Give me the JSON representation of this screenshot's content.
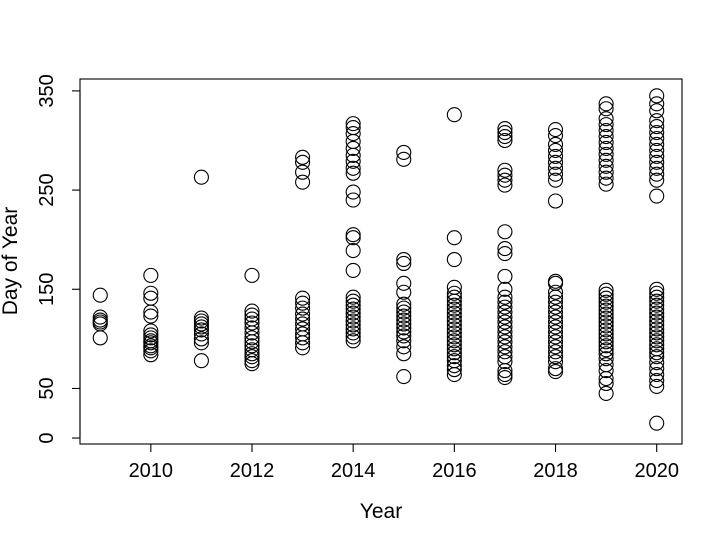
{
  "chart_data": {
    "type": "scatter",
    "title": "",
    "xlabel": "Year",
    "ylabel": "Day of Year",
    "xlim": [
      2008.6,
      2020.5
    ],
    "ylim": [
      -6,
      362
    ],
    "x_ticks": [
      2010,
      2012,
      2014,
      2016,
      2018,
      2020
    ],
    "y_ticks": [
      0,
      50,
      150,
      250,
      350
    ],
    "grid": false,
    "legend": "none",
    "marker": "open-circle",
    "colors": {
      "point_stroke": "#000000",
      "axis": "#000000",
      "background": "#ffffff"
    },
    "series": [
      {
        "points": [
          [
            2009,
            144
          ],
          [
            2009,
            122
          ],
          [
            2009,
            119
          ],
          [
            2009,
            117
          ],
          [
            2009,
            115
          ],
          [
            2009,
            101
          ],
          [
            2010,
            164
          ],
          [
            2010,
            146
          ],
          [
            2010,
            141
          ],
          [
            2010,
            127
          ],
          [
            2010,
            123
          ],
          [
            2010,
            108
          ],
          [
            2010,
            104
          ],
          [
            2010,
            101
          ],
          [
            2010,
            98
          ],
          [
            2010,
            96
          ],
          [
            2010,
            93
          ],
          [
            2010,
            91
          ],
          [
            2010,
            88
          ],
          [
            2010,
            84
          ],
          [
            2011,
            263
          ],
          [
            2011,
            121
          ],
          [
            2011,
            118
          ],
          [
            2011,
            115
          ],
          [
            2011,
            112
          ],
          [
            2011,
            109
          ],
          [
            2011,
            105
          ],
          [
            2011,
            100
          ],
          [
            2011,
            96
          ],
          [
            2011,
            78
          ],
          [
            2012,
            164
          ],
          [
            2012,
            128
          ],
          [
            2012,
            124
          ],
          [
            2012,
            120
          ],
          [
            2012,
            116
          ],
          [
            2012,
            111
          ],
          [
            2012,
            106
          ],
          [
            2012,
            101
          ],
          [
            2012,
            97
          ],
          [
            2012,
            93
          ],
          [
            2012,
            89
          ],
          [
            2012,
            85
          ],
          [
            2012,
            82
          ],
          [
            2012,
            78
          ],
          [
            2012,
            75
          ],
          [
            2013,
            283
          ],
          [
            2013,
            278
          ],
          [
            2013,
            268
          ],
          [
            2013,
            258
          ],
          [
            2013,
            141
          ],
          [
            2013,
            136
          ],
          [
            2013,
            131
          ],
          [
            2013,
            125
          ],
          [
            2013,
            120
          ],
          [
            2013,
            115
          ],
          [
            2013,
            110
          ],
          [
            2013,
            105
          ],
          [
            2013,
            101
          ],
          [
            2013,
            96
          ],
          [
            2013,
            91
          ],
          [
            2014,
            317
          ],
          [
            2014,
            313
          ],
          [
            2014,
            307
          ],
          [
            2014,
            299
          ],
          [
            2014,
            292
          ],
          [
            2014,
            285
          ],
          [
            2014,
            279
          ],
          [
            2014,
            272
          ],
          [
            2014,
            267
          ],
          [
            2014,
            248
          ],
          [
            2014,
            240
          ],
          [
            2014,
            205
          ],
          [
            2014,
            202
          ],
          [
            2014,
            189
          ],
          [
            2014,
            169
          ],
          [
            2014,
            142
          ],
          [
            2014,
            138
          ],
          [
            2014,
            134
          ],
          [
            2014,
            130
          ],
          [
            2014,
            126
          ],
          [
            2014,
            122
          ],
          [
            2014,
            118
          ],
          [
            2014,
            114
          ],
          [
            2014,
            110
          ],
          [
            2014,
            106
          ],
          [
            2014,
            102
          ],
          [
            2014,
            98
          ],
          [
            2015,
            288
          ],
          [
            2015,
            281
          ],
          [
            2015,
            180
          ],
          [
            2015,
            176
          ],
          [
            2015,
            156
          ],
          [
            2015,
            147
          ],
          [
            2015,
            135
          ],
          [
            2015,
            131
          ],
          [
            2015,
            127
          ],
          [
            2015,
            123
          ],
          [
            2015,
            119
          ],
          [
            2015,
            115
          ],
          [
            2015,
            111
          ],
          [
            2015,
            107
          ],
          [
            2015,
            103
          ],
          [
            2015,
            98
          ],
          [
            2015,
            92
          ],
          [
            2015,
            85
          ],
          [
            2015,
            62
          ],
          [
            2016,
            326
          ],
          [
            2016,
            202
          ],
          [
            2016,
            180
          ],
          [
            2016,
            152
          ],
          [
            2016,
            146
          ],
          [
            2016,
            142
          ],
          [
            2016,
            138
          ],
          [
            2016,
            134
          ],
          [
            2016,
            130
          ],
          [
            2016,
            126
          ],
          [
            2016,
            122
          ],
          [
            2016,
            118
          ],
          [
            2016,
            114
          ],
          [
            2016,
            110
          ],
          [
            2016,
            106
          ],
          [
            2016,
            102
          ],
          [
            2016,
            98
          ],
          [
            2016,
            94
          ],
          [
            2016,
            90
          ],
          [
            2016,
            86
          ],
          [
            2016,
            82
          ],
          [
            2016,
            78
          ],
          [
            2016,
            73
          ],
          [
            2016,
            69
          ],
          [
            2016,
            64
          ],
          [
            2017,
            312
          ],
          [
            2017,
            308
          ],
          [
            2017,
            304
          ],
          [
            2017,
            300
          ],
          [
            2017,
            270
          ],
          [
            2017,
            265
          ],
          [
            2017,
            260
          ],
          [
            2017,
            255
          ],
          [
            2017,
            208
          ],
          [
            2017,
            191
          ],
          [
            2017,
            186
          ],
          [
            2017,
            163
          ],
          [
            2017,
            150
          ],
          [
            2017,
            142
          ],
          [
            2017,
            137
          ],
          [
            2017,
            132
          ],
          [
            2017,
            127
          ],
          [
            2017,
            122
          ],
          [
            2017,
            117
          ],
          [
            2017,
            112
          ],
          [
            2017,
            107
          ],
          [
            2017,
            102
          ],
          [
            2017,
            97
          ],
          [
            2017,
            92
          ],
          [
            2017,
            87
          ],
          [
            2017,
            82
          ],
          [
            2017,
            77
          ],
          [
            2017,
            68
          ],
          [
            2017,
            64
          ],
          [
            2017,
            61
          ],
          [
            2018,
            311
          ],
          [
            2018,
            305
          ],
          [
            2018,
            296
          ],
          [
            2018,
            290
          ],
          [
            2018,
            284
          ],
          [
            2018,
            278
          ],
          [
            2018,
            272
          ],
          [
            2018,
            266
          ],
          [
            2018,
            260
          ],
          [
            2018,
            239
          ],
          [
            2018,
            158
          ],
          [
            2018,
            156
          ],
          [
            2018,
            147
          ],
          [
            2018,
            142
          ],
          [
            2018,
            137
          ],
          [
            2018,
            132
          ],
          [
            2018,
            127
          ],
          [
            2018,
            122
          ],
          [
            2018,
            117
          ],
          [
            2018,
            112
          ],
          [
            2018,
            107
          ],
          [
            2018,
            102
          ],
          [
            2018,
            97
          ],
          [
            2018,
            92
          ],
          [
            2018,
            87
          ],
          [
            2018,
            82
          ],
          [
            2018,
            77
          ],
          [
            2018,
            70
          ],
          [
            2018,
            67
          ],
          [
            2019,
            337
          ],
          [
            2019,
            332
          ],
          [
            2019,
            322
          ],
          [
            2019,
            316
          ],
          [
            2019,
            310
          ],
          [
            2019,
            304
          ],
          [
            2019,
            298
          ],
          [
            2019,
            292
          ],
          [
            2019,
            286
          ],
          [
            2019,
            280
          ],
          [
            2019,
            274
          ],
          [
            2019,
            268
          ],
          [
            2019,
            262
          ],
          [
            2019,
            256
          ],
          [
            2019,
            149
          ],
          [
            2019,
            145
          ],
          [
            2019,
            141
          ],
          [
            2019,
            137
          ],
          [
            2019,
            133
          ],
          [
            2019,
            129
          ],
          [
            2019,
            125
          ],
          [
            2019,
            121
          ],
          [
            2019,
            117
          ],
          [
            2019,
            113
          ],
          [
            2019,
            109
          ],
          [
            2019,
            105
          ],
          [
            2019,
            101
          ],
          [
            2019,
            97
          ],
          [
            2019,
            93
          ],
          [
            2019,
            89
          ],
          [
            2019,
            85
          ],
          [
            2019,
            80
          ],
          [
            2019,
            74
          ],
          [
            2019,
            68
          ],
          [
            2019,
            60
          ],
          [
            2019,
            55
          ],
          [
            2019,
            45
          ],
          [
            2020,
            345
          ],
          [
            2020,
            337
          ],
          [
            2020,
            330
          ],
          [
            2020,
            320
          ],
          [
            2020,
            314
          ],
          [
            2020,
            308
          ],
          [
            2020,
            302
          ],
          [
            2020,
            296
          ],
          [
            2020,
            290
          ],
          [
            2020,
            284
          ],
          [
            2020,
            278
          ],
          [
            2020,
            272
          ],
          [
            2020,
            266
          ],
          [
            2020,
            260
          ],
          [
            2020,
            244
          ],
          [
            2020,
            150
          ],
          [
            2020,
            146
          ],
          [
            2020,
            142
          ],
          [
            2020,
            138
          ],
          [
            2020,
            134
          ],
          [
            2020,
            130
          ],
          [
            2020,
            126
          ],
          [
            2020,
            122
          ],
          [
            2020,
            118
          ],
          [
            2020,
            114
          ],
          [
            2020,
            110
          ],
          [
            2020,
            106
          ],
          [
            2020,
            102
          ],
          [
            2020,
            98
          ],
          [
            2020,
            94
          ],
          [
            2020,
            90
          ],
          [
            2020,
            86
          ],
          [
            2020,
            82
          ],
          [
            2020,
            76
          ],
          [
            2020,
            70
          ],
          [
            2020,
            64
          ],
          [
            2020,
            58
          ],
          [
            2020,
            52
          ],
          [
            2020,
            15
          ]
        ]
      }
    ]
  }
}
